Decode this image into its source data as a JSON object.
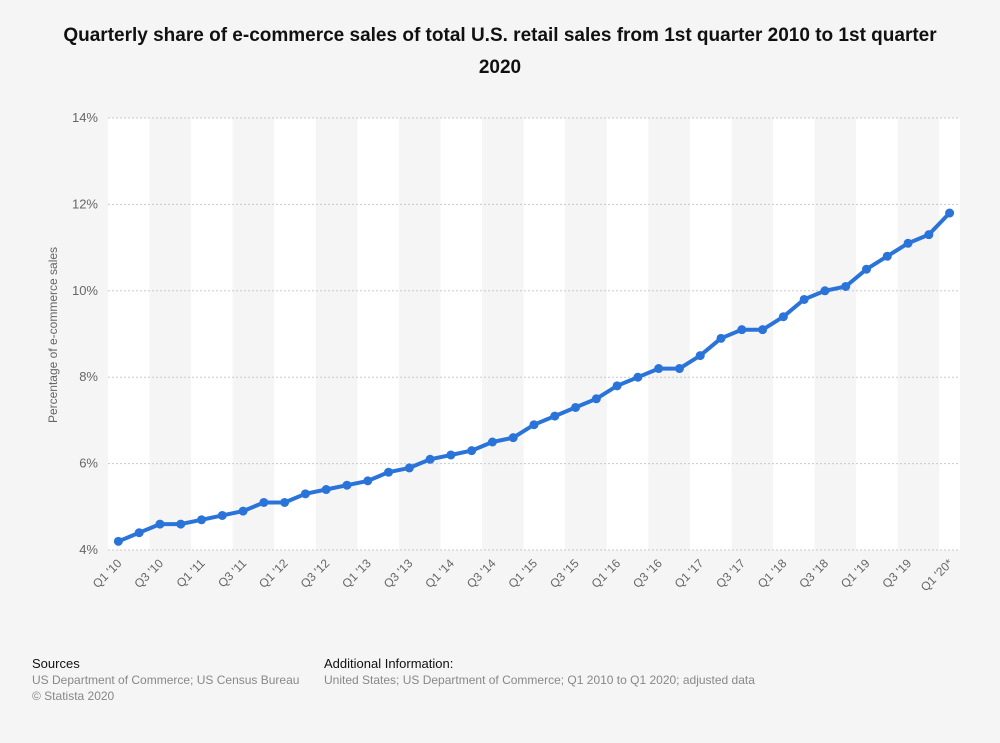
{
  "chart_data": {
    "type": "line",
    "title": "Quarterly share of e-commerce sales of total U.S. retail sales from 1st quarter 2010 to 1st quarter 2020",
    "ylabel": "Percentage of e-commerce sales",
    "xlabel": "",
    "ylim": [
      4,
      14
    ],
    "yticks": [
      "4%",
      "6%",
      "8%",
      "10%",
      "12%",
      "14%"
    ],
    "y_tick_values": [
      4,
      6,
      8,
      10,
      12,
      14
    ],
    "categories": [
      "Q1 '10",
      "Q2 '10",
      "Q3 '10",
      "Q4 '10",
      "Q1 '11",
      "Q2 '11",
      "Q3 '11",
      "Q4 '11",
      "Q1 '12",
      "Q2 '12",
      "Q3 '12",
      "Q4 '12",
      "Q1 '13",
      "Q2 '13",
      "Q3 '13",
      "Q4 '13",
      "Q1 '14",
      "Q2 '14",
      "Q3 '14",
      "Q4 '14",
      "Q1 '15",
      "Q2 '15",
      "Q3 '15",
      "Q4 '15",
      "Q1 '16",
      "Q2 '16",
      "Q3 '16",
      "Q4 '16",
      "Q1 '17",
      "Q2 '17",
      "Q3 '17",
      "Q4 '17",
      "Q1 '18",
      "Q2 '18",
      "Q3 '18",
      "Q4 '18",
      "Q1 '19",
      "Q2 '19",
      "Q3 '19",
      "Q4 '19",
      "Q1 '20*"
    ],
    "x_tick_labels": [
      "Q1 '10",
      "Q3 '10",
      "Q1 '11",
      "Q3 '11",
      "Q1 '12",
      "Q3 '12",
      "Q1 '13",
      "Q3 '13",
      "Q1 '14",
      "Q3 '14",
      "Q1 '15",
      "Q3 '15",
      "Q1 '16",
      "Q3 '16",
      "Q1 '17",
      "Q3 '17",
      "Q1 '18",
      "Q3 '18",
      "Q1 '19",
      "Q3 '19",
      "Q1 '20*"
    ],
    "values": [
      4.2,
      4.4,
      4.6,
      4.6,
      4.7,
      4.8,
      4.9,
      5.1,
      5.1,
      5.3,
      5.4,
      5.5,
      5.6,
      5.8,
      5.9,
      6.1,
      6.2,
      6.3,
      6.5,
      6.6,
      6.9,
      7.1,
      7.3,
      7.5,
      7.8,
      8.0,
      8.2,
      8.2,
      8.5,
      8.9,
      9.1,
      9.1,
      9.4,
      9.8,
      10.0,
      10.1,
      10.5,
      10.8,
      11.1,
      11.3,
      11.8
    ],
    "grid": true,
    "legend": "none",
    "colors": {
      "line": "#2a74d9",
      "band": "#ffffff",
      "grid": "#c8c8c8",
      "tick_text": "#666666"
    }
  },
  "footer": {
    "sources_heading": "Sources",
    "sources_line1": "US Department of Commerce; US Census Bureau",
    "sources_line2": "© Statista 2020",
    "info_heading": "Additional Information:",
    "info_line1": "United States; US Department of Commerce; Q1 2010 to Q1 2020; adjusted data"
  }
}
